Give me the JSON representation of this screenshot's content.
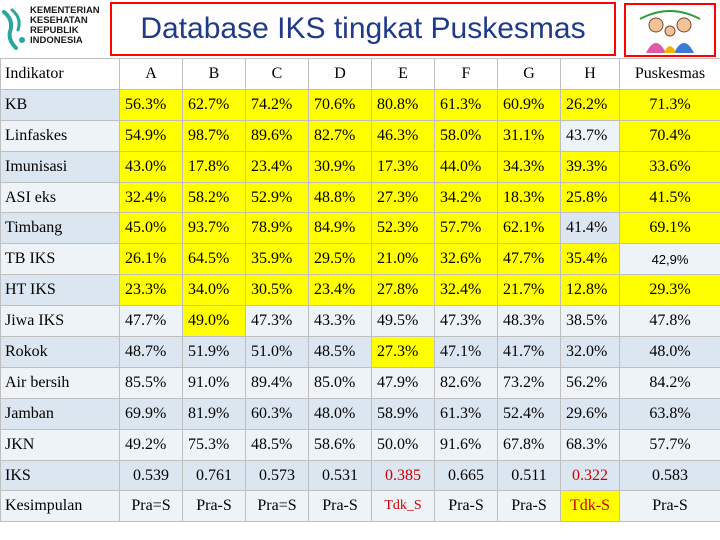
{
  "header": {
    "org_logo_lines": [
      "KEMENTERIAN",
      "KESEHATAN",
      "REPUBLIK",
      "INDONESIA"
    ],
    "title": "Database IKS tingkat Puskesmas",
    "family_logo_icon": "family-logo-icon",
    "colors": {
      "title_border": "#ff0000",
      "title_text": "#1f3a8a"
    }
  },
  "table": {
    "columns": [
      "Indikator",
      "A",
      "B",
      "C",
      "D",
      "E",
      "F",
      "G",
      "H",
      "Puskesmas"
    ],
    "rows": [
      {
        "label": "KB",
        "values": [
          "56.3%",
          "62.7%",
          "74.2%",
          "70.6%",
          "80.8%",
          "61.3%",
          "60.9%",
          "26.2%"
        ],
        "puskesmas": "71.3%"
      },
      {
        "label": "Linfaskes",
        "values": [
          "54.9%",
          "98.7%",
          "89.6%",
          "82.7%",
          "46.3%",
          "58.0%",
          "31.1%",
          "43.7%"
        ],
        "puskesmas": "70.4%"
      },
      {
        "label": "Imunisasi",
        "values": [
          "43.0%",
          "17.8%",
          "23.4%",
          "30.9%",
          "17.3%",
          "44.0%",
          "34.3%",
          "39.3%"
        ],
        "puskesmas": "33.6%"
      },
      {
        "label": "ASI eks",
        "values": [
          "32.4%",
          "58.2%",
          "52.9%",
          "48.8%",
          "27.3%",
          "34.2%",
          "18.3%",
          "25.8%"
        ],
        "puskesmas": "41.5%"
      },
      {
        "label": "Timbang",
        "values": [
          "45.0%",
          "93.7%",
          "78.9%",
          "84.9%",
          "52.3%",
          "57.7%",
          "62.1%",
          "41.4%"
        ],
        "puskesmas": "69.1%"
      },
      {
        "label": "TB IKS",
        "values": [
          "26.1%",
          "64.5%",
          "35.9%",
          "29.5%",
          "21.0%",
          "32.6%",
          "47.7%",
          "35.4%"
        ],
        "puskesmas": "42,9%"
      },
      {
        "label": "HT IKS",
        "values": [
          "23.3%",
          "34.0%",
          "30.5%",
          "23.4%",
          "27.8%",
          "32.4%",
          "21.7%",
          "12.8%"
        ],
        "puskesmas": "29.3%"
      },
      {
        "label": "Jiwa IKS",
        "values": [
          "47.7%",
          "49.0%",
          "47.3%",
          "43.3%",
          "49.5%",
          "47.3%",
          "48.3%",
          "38.5%"
        ],
        "puskesmas": "47.8%"
      },
      {
        "label": "Rokok",
        "values": [
          "48.7%",
          "51.9%",
          "51.0%",
          "48.5%",
          "27.3%",
          "47.1%",
          "41.7%",
          "32.0%"
        ],
        "puskesmas": "48.0%"
      },
      {
        "label": "Air bersih",
        "values": [
          "85.5%",
          "91.0%",
          "89.4%",
          "85.0%",
          "47.9%",
          "82.6%",
          "73.2%",
          "56.2%"
        ],
        "puskesmas": "84.2%"
      },
      {
        "label": "Jamban",
        "values": [
          "69.9%",
          "81.9%",
          "60.3%",
          "48.0%",
          "58.9%",
          "61.3%",
          "52.4%",
          "29.6%"
        ],
        "puskesmas": "63.8%"
      },
      {
        "label": "JKN",
        "values": [
          "49.2%",
          "75.3%",
          "48.5%",
          "58.6%",
          "50.0%",
          "91.6%",
          "67.8%",
          "68.3%"
        ],
        "puskesmas": "57.7%"
      },
      {
        "label": "IKS",
        "values": [
          "0.539",
          "0.761",
          "0.573",
          "0.531",
          "0.385",
          "0.665",
          "0.511",
          "0.322"
        ],
        "puskesmas": "0.583"
      },
      {
        "label": "Kesimpulan",
        "values": [
          "Pra=S",
          "Pra-S",
          "Pra=S",
          "Pra-S",
          "Tdk_S",
          "Pra-S",
          "Pra-S",
          "Tdk-S"
        ],
        "puskesmas": "Pra-S"
      }
    ],
    "highlight_color": "#ffff00",
    "highlighted_cells": [
      [
        0,
        0
      ],
      [
        0,
        1
      ],
      [
        0,
        2
      ],
      [
        0,
        3
      ],
      [
        0,
        4
      ],
      [
        0,
        5
      ],
      [
        0,
        6
      ],
      [
        0,
        7
      ],
      [
        0,
        8
      ],
      [
        1,
        0
      ],
      [
        1,
        1
      ],
      [
        1,
        2
      ],
      [
        1,
        3
      ],
      [
        1,
        4
      ],
      [
        1,
        5
      ],
      [
        1,
        6
      ],
      [
        1,
        8
      ],
      [
        2,
        0
      ],
      [
        2,
        1
      ],
      [
        2,
        2
      ],
      [
        2,
        3
      ],
      [
        2,
        4
      ],
      [
        2,
        5
      ],
      [
        2,
        6
      ],
      [
        2,
        7
      ],
      [
        2,
        8
      ],
      [
        3,
        0
      ],
      [
        3,
        1
      ],
      [
        3,
        2
      ],
      [
        3,
        3
      ],
      [
        3,
        4
      ],
      [
        3,
        5
      ],
      [
        3,
        6
      ],
      [
        3,
        7
      ],
      [
        3,
        8
      ],
      [
        4,
        0
      ],
      [
        4,
        1
      ],
      [
        4,
        2
      ],
      [
        4,
        3
      ],
      [
        4,
        4
      ],
      [
        4,
        5
      ],
      [
        4,
        6
      ],
      [
        4,
        8
      ],
      [
        5,
        0
      ],
      [
        5,
        1
      ],
      [
        5,
        2
      ],
      [
        5,
        3
      ],
      [
        5,
        4
      ],
      [
        5,
        5
      ],
      [
        5,
        6
      ],
      [
        5,
        7
      ],
      [
        6,
        0
      ],
      [
        6,
        1
      ],
      [
        6,
        2
      ],
      [
        6,
        3
      ],
      [
        6,
        4
      ],
      [
        6,
        5
      ],
      [
        6,
        6
      ],
      [
        6,
        7
      ],
      [
        6,
        8
      ],
      [
        7,
        1
      ],
      [
        8,
        4
      ],
      [
        13,
        7
      ]
    ],
    "red_text_cells": [
      [
        12,
        4
      ],
      [
        12,
        7
      ],
      [
        13,
        4
      ],
      [
        13,
        7
      ]
    ]
  }
}
